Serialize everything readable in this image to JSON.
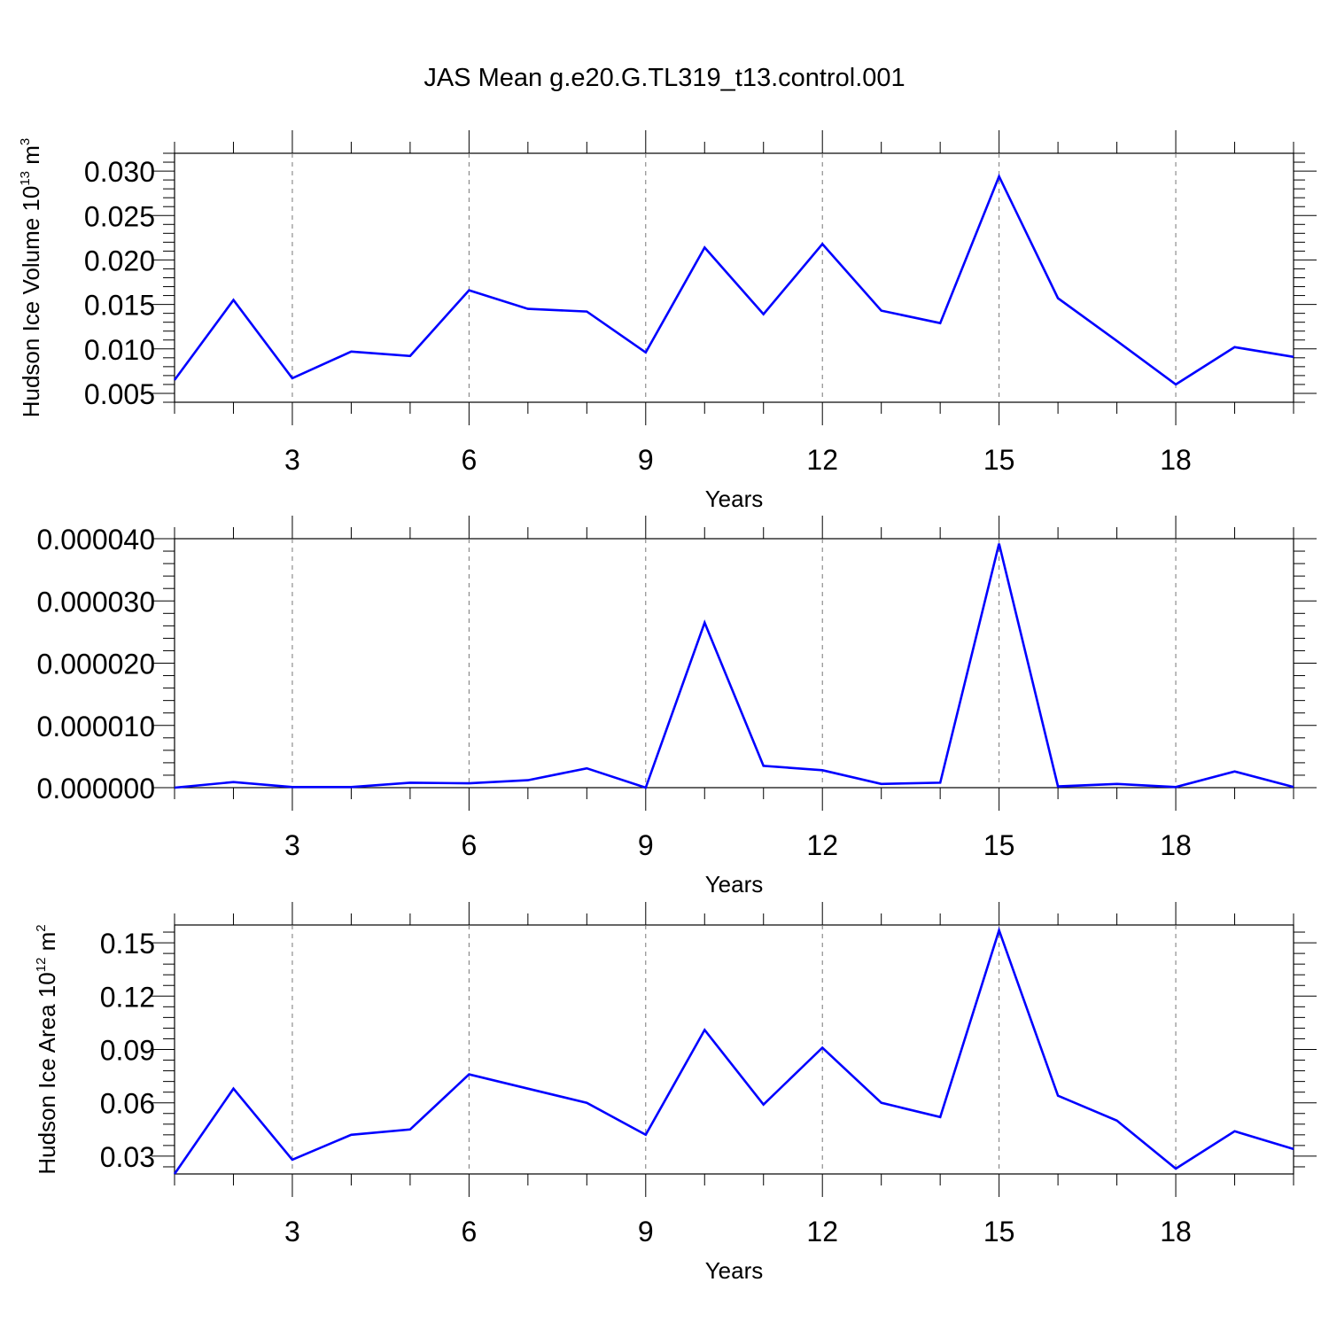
{
  "title": "JAS Mean g.e20.G.TL319_t13.control.001",
  "colors": {
    "line": "#0000ff",
    "axis": "#000000",
    "grid": "#777777"
  },
  "chart_data": [
    {
      "type": "line",
      "name": "volume-panel",
      "xlabel": "Years",
      "ylabel": {
        "text": "Hudson Ice Volume 10",
        "sup": "13",
        "unit": " m",
        "unit_sup": "3"
      },
      "xlim": [
        1,
        20
      ],
      "ylim": [
        0.004,
        0.032
      ],
      "x_ticks": [
        3,
        6,
        9,
        12,
        15,
        18
      ],
      "y_ticks": [
        0.005,
        0.01,
        0.015,
        0.02,
        0.025,
        0.03
      ],
      "y_tick_labels": [
        "0.005",
        "0.010",
        "0.015",
        "0.020",
        "0.025",
        "0.030"
      ],
      "x": [
        1,
        2,
        3,
        4,
        5,
        6,
        7,
        8,
        9,
        10,
        11,
        12,
        13,
        14,
        15,
        16,
        17,
        18,
        19,
        20
      ],
      "values": [
        0.0065,
        0.0155,
        0.0067,
        0.0097,
        0.0092,
        0.0166,
        0.0145,
        0.0142,
        0.0096,
        0.0214,
        0.0139,
        0.0218,
        0.0143,
        0.0129,
        0.0294,
        0.0157,
        0.0109,
        0.006,
        0.0102,
        0.0091
      ]
    },
    {
      "type": "line",
      "name": "snow-panel",
      "xlabel": "Years",
      "ylabel": null,
      "xlim": [
        1,
        20
      ],
      "ylim": [
        0.0,
        4e-05
      ],
      "x_ticks": [
        3,
        6,
        9,
        12,
        15,
        18
      ],
      "y_ticks": [
        0.0,
        1e-05,
        2e-05,
        3e-05,
        4e-05
      ],
      "y_tick_labels": [
        "0.000000",
        "0.000010",
        "0.000020",
        "0.000030",
        "0.000040"
      ],
      "x": [
        1,
        2,
        3,
        4,
        5,
        6,
        7,
        8,
        9,
        10,
        11,
        12,
        13,
        14,
        15,
        16,
        17,
        18,
        19,
        20
      ],
      "values": [
        0.0,
        9e-07,
        1e-07,
        1e-07,
        8e-07,
        7e-07,
        1.2e-06,
        3.1e-06,
        0.0,
        2.65e-05,
        3.5e-06,
        2.8e-06,
        6e-07,
        8e-07,
        3.92e-05,
        2e-07,
        6e-07,
        1e-07,
        2.6e-06,
        1e-07
      ]
    },
    {
      "type": "line",
      "name": "area-panel",
      "xlabel": "Years",
      "ylabel": {
        "text": "Hudson Ice Area 10",
        "sup": "12",
        "unit": " m",
        "unit_sup": "2"
      },
      "xlim": [
        1,
        20
      ],
      "ylim": [
        0.02,
        0.16
      ],
      "x_ticks": [
        3,
        6,
        9,
        12,
        15,
        18
      ],
      "y_ticks": [
        0.03,
        0.06,
        0.09,
        0.12,
        0.15
      ],
      "y_tick_labels": [
        "0.03",
        "0.06",
        "0.09",
        "0.12",
        "0.15"
      ],
      "x": [
        1,
        2,
        3,
        4,
        5,
        6,
        7,
        8,
        9,
        10,
        11,
        12,
        13,
        14,
        15,
        16,
        17,
        18,
        19,
        20
      ],
      "values": [
        0.02,
        0.068,
        0.028,
        0.042,
        0.045,
        0.076,
        0.068,
        0.06,
        0.042,
        0.101,
        0.059,
        0.091,
        0.06,
        0.052,
        0.157,
        0.064,
        0.05,
        0.023,
        0.044,
        0.034
      ]
    }
  ]
}
